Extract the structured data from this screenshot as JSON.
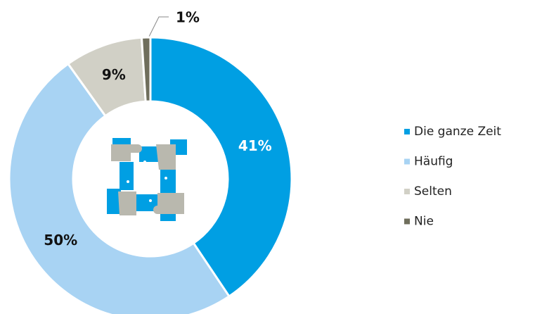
{
  "chart_data": {
    "type": "donut",
    "categories": [
      "Die ganze Zeit",
      "Häufig",
      "Selten",
      "Nie"
    ],
    "values": [
      41,
      50,
      9,
      1
    ],
    "value_labels": [
      "41%",
      "50%",
      "9%",
      "1%"
    ],
    "colors": [
      "#009fe3",
      "#a8d3f3",
      "#d1d0c6",
      "#6f6e5c"
    ],
    "legend": "right"
  }
}
